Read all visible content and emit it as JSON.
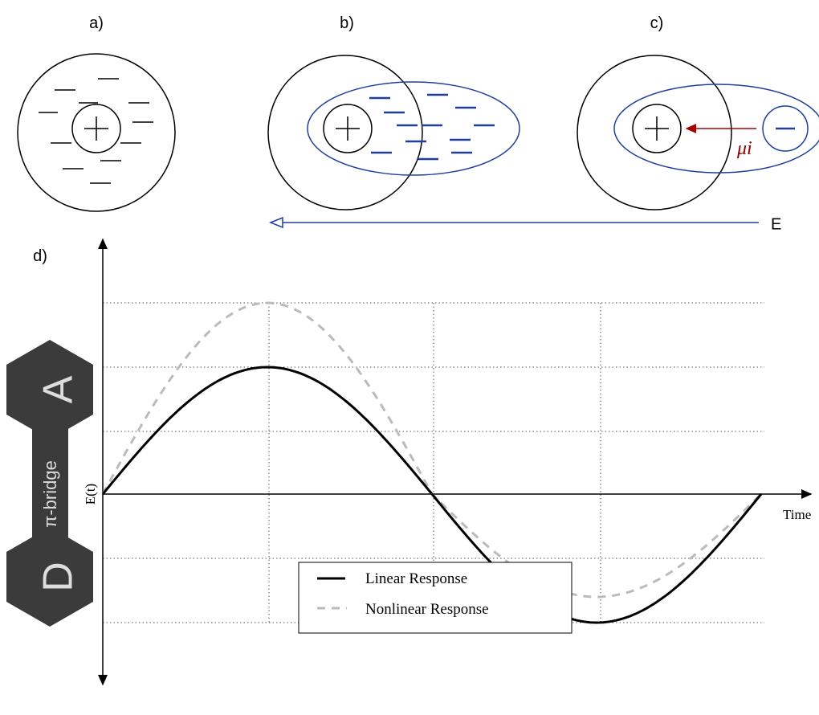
{
  "panels": {
    "a": "a)",
    "b": "b)",
    "c": "c)",
    "d": "d)"
  },
  "field_label": "E",
  "dipole_label": "μi",
  "plot": {
    "y_label": "E(t)",
    "x_label": "Time",
    "legend": [
      "Linear Response",
      "Nonlinear Response"
    ]
  },
  "molecule": {
    "acceptor": "A",
    "donor": "D",
    "bridge": "π-bridge"
  }
}
